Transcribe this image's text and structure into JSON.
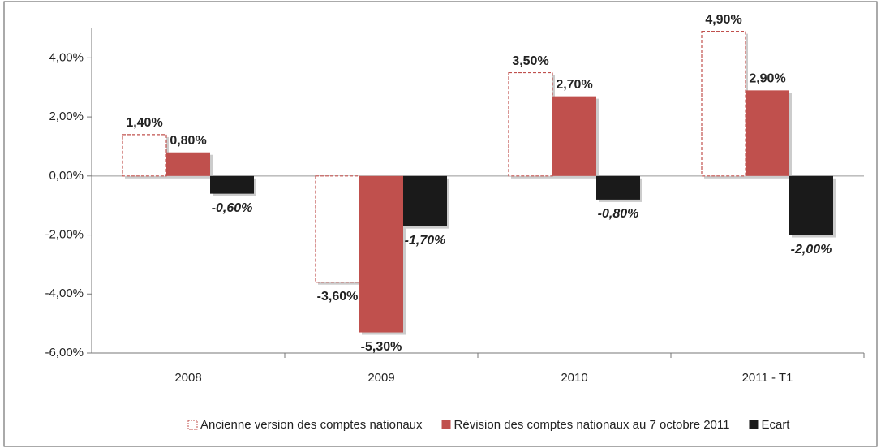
{
  "chart_data": {
    "type": "bar",
    "categories": [
      "2008",
      "2009",
      "2010",
      "2011 - T1"
    ],
    "series": [
      {
        "name": "Ancienne version des comptes nationaux",
        "color": "#c0504d",
        "values": [
          1.4,
          -3.6,
          3.5,
          4.9
        ],
        "value_labels": [
          "1,40%",
          "-3,60%",
          "3,50%",
          "4,90%"
        ]
      },
      {
        "name": "Révision des comptes nationaux au 7 octobre 2011",
        "color": "#c0504d",
        "values": [
          0.8,
          -5.3,
          2.7,
          2.9
        ],
        "value_labels": [
          "0,80%",
          "-5,30%",
          "2,70%",
          "2,90%"
        ]
      },
      {
        "name": "Ecart",
        "color": "#1a1a1a",
        "values": [
          -0.6,
          -1.7,
          -0.8,
          -2.0
        ],
        "value_labels": [
          "-0,60%",
          "-1,70%",
          "-0,80%",
          "-2,00%"
        ]
      }
    ],
    "ylim": [
      -6,
      5
    ],
    "yticks": [
      {
        "value": -6,
        "label": "-6,00%"
      },
      {
        "value": -4,
        "label": "-4,00%"
      },
      {
        "value": -2,
        "label": "-2,00%"
      },
      {
        "value": 0,
        "label": "0,00%"
      },
      {
        "value": 2,
        "label": "2,00%"
      },
      {
        "value": 4,
        "label": "4,00%"
      }
    ],
    "legend": "bottom"
  }
}
